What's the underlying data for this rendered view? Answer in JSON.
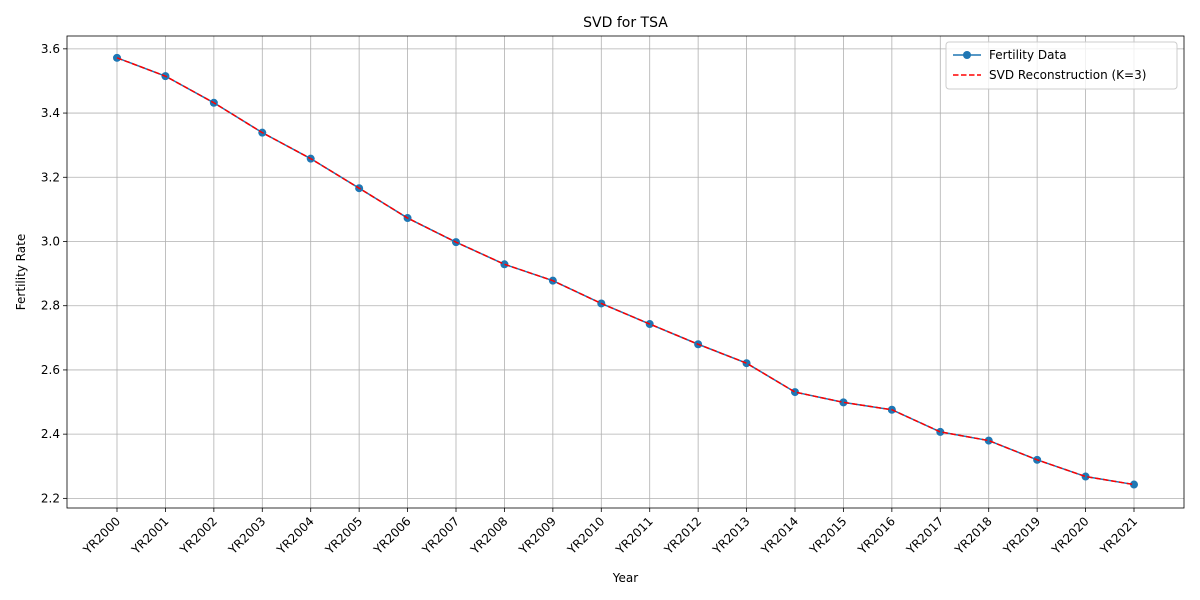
{
  "chart_data": {
    "type": "line",
    "title": "SVD for TSA",
    "xlabel": "Year",
    "ylabel": "Fertility Rate",
    "categories": [
      "YR2000",
      "YR2001",
      "YR2002",
      "YR2003",
      "YR2004",
      "YR2005",
      "YR2006",
      "YR2007",
      "YR2008",
      "YR2009",
      "YR2010",
      "YR2011",
      "YR2012",
      "YR2013",
      "YR2014",
      "YR2015",
      "YR2016",
      "YR2017",
      "YR2018",
      "YR2019",
      "YR2020",
      "YR2021"
    ],
    "ylim": [
      2.17,
      3.64
    ],
    "yticks": [
      2.2,
      2.4,
      2.6,
      2.8,
      3.0,
      3.2,
      3.4,
      3.6
    ],
    "ytick_labels": [
      "2.2",
      "2.4",
      "2.6",
      "2.8",
      "3.0",
      "3.2",
      "3.4",
      "3.6"
    ],
    "grid": true,
    "legend_position": "top-right",
    "series": [
      {
        "name": "Fertility Data",
        "color": "#1f77b4",
        "style": "solid-with-circle-markers",
        "values": [
          3.572,
          3.515,
          3.432,
          3.339,
          3.258,
          3.166,
          3.073,
          2.998,
          2.929,
          2.878,
          2.807,
          2.743,
          2.68,
          2.621,
          2.531,
          2.499,
          2.476,
          2.407,
          2.38,
          2.32,
          2.268,
          2.243
        ]
      },
      {
        "name": "SVD Reconstruction (K=3)",
        "color": "#ff0000",
        "style": "dashed",
        "values": [
          3.572,
          3.515,
          3.432,
          3.339,
          3.258,
          3.166,
          3.073,
          2.998,
          2.929,
          2.878,
          2.807,
          2.743,
          2.68,
          2.621,
          2.531,
          2.499,
          2.476,
          2.407,
          2.38,
          2.32,
          2.268,
          2.243
        ]
      }
    ]
  }
}
